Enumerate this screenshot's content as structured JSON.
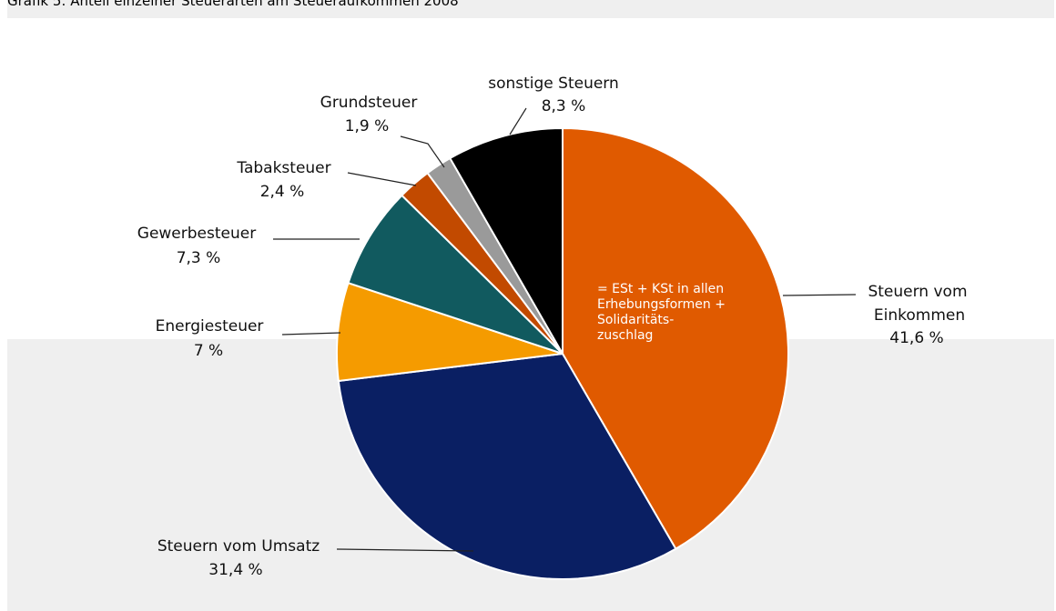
{
  "title": "Grafik 5: Anteil einzelner Steuerarten am Steueraufkommen 2008",
  "chart_data": {
    "type": "pie",
    "title": "Grafik 5: Anteil einzelner Steuerarten am Steueraufkommen 2008",
    "slices": [
      {
        "name": "Steuern vom Einkommen",
        "value": 41.6,
        "value_label": "41,6 %",
        "color": "#e05a00"
      },
      {
        "name": "Steuern vom Umsatz",
        "value": 31.4,
        "value_label": "31,4 %",
        "color": "#0a1f63"
      },
      {
        "name": "Energiesteuer",
        "value": 7.0,
        "value_label": "7 %",
        "color": "#f59b00"
      },
      {
        "name": "Gewerbesteuer",
        "value": 7.3,
        "value_label": "7,3 %",
        "color": "#115a5f"
      },
      {
        "name": "Tabaksteuer",
        "value": 2.4,
        "value_label": "2,4 %",
        "color": "#c24a00"
      },
      {
        "name": "Grundsteuer",
        "value": 1.9,
        "value_label": "1,9 %",
        "color": "#9a9a9a"
      },
      {
        "name": "sonstige Steuern",
        "value": 8.3,
        "value_label": "8,3 %",
        "color": "#000000"
      }
    ],
    "annotation_lines": [
      "= ESt + KSt in allen",
      "Erhebungsformen +",
      "Solidaritäts-",
      "zuschlag"
    ]
  }
}
